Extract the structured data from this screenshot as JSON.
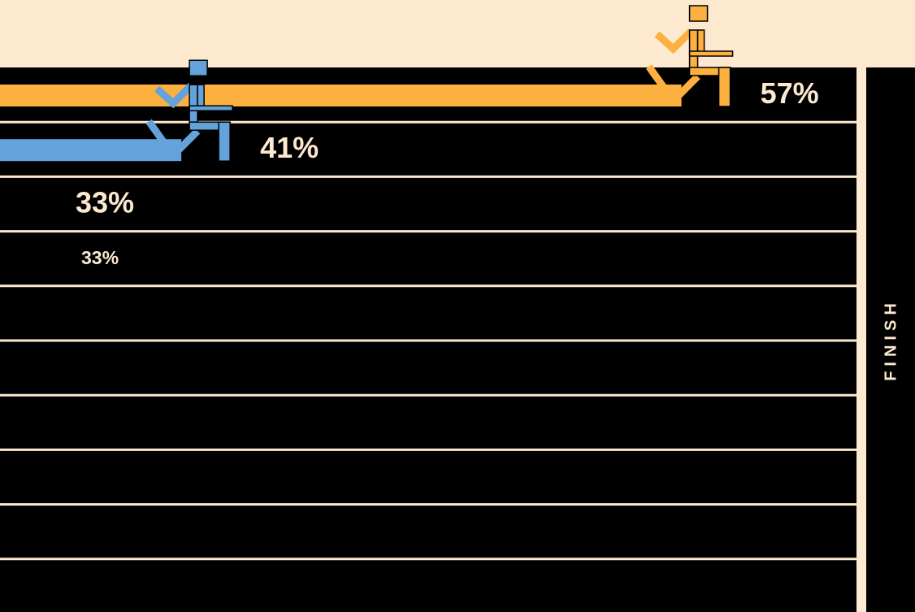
{
  "chart_data": {
    "type": "race",
    "finish_label": "FINISH",
    "values": [
      57,
      41,
      33,
      33
    ],
    "value_labels": [
      "57%",
      "41%",
      "33%",
      "33%"
    ],
    "colors": [
      "#fbb040",
      "#64a2dc",
      null,
      null
    ],
    "xlim": [
      35.2,
      62.6
    ]
  }
}
